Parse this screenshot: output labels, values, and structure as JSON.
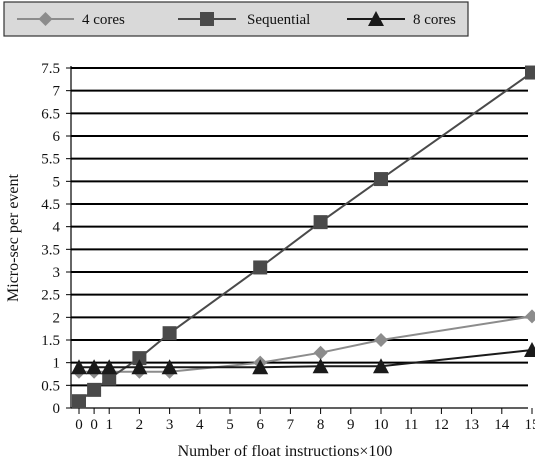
{
  "chart_data": {
    "type": "line",
    "xlabel": "Number of float instructions×100",
    "ylabel": "Micro-sec per event",
    "x_tick_labels": [
      "0",
      "0",
      "1",
      "2",
      "3",
      "4",
      "5",
      "6",
      "7",
      "8",
      "9",
      "10",
      "11",
      "12",
      "13",
      "14",
      "15"
    ],
    "y_ticks": [
      "0",
      "0.5",
      "1",
      "1.5",
      "2",
      "2.5",
      "3",
      "3.5",
      "4",
      "4.5",
      "5",
      "5.5",
      "6",
      "6.5",
      "7",
      "7.5"
    ],
    "ylim": [
      0,
      7.5
    ],
    "grid": "horizontal",
    "legend_position": "top",
    "series": [
      {
        "name": "4 cores",
        "color": "#8c8c8c",
        "marker": "diamond",
        "x": [
          0,
          0.5,
          1,
          2,
          3,
          6,
          8,
          10,
          15
        ],
        "y": [
          0.8,
          0.8,
          0.8,
          0.8,
          0.8,
          1.0,
          1.22,
          1.5,
          2.02
        ]
      },
      {
        "name": "Sequential",
        "color": "#4a4a4a",
        "marker": "square",
        "x": [
          0,
          0.5,
          1,
          2,
          3,
          6,
          8,
          10,
          15
        ],
        "y": [
          0.15,
          0.4,
          0.65,
          1.1,
          1.65,
          3.1,
          4.1,
          5.05,
          7.4
        ]
      },
      {
        "name": "8 cores",
        "color": "#1a1a1a",
        "marker": "triangle",
        "x": [
          0,
          0.5,
          1,
          2,
          3,
          6,
          8,
          10,
          15
        ],
        "y": [
          0.9,
          0.9,
          0.9,
          0.9,
          0.9,
          0.9,
          0.92,
          0.92,
          1.28
        ]
      }
    ]
  }
}
